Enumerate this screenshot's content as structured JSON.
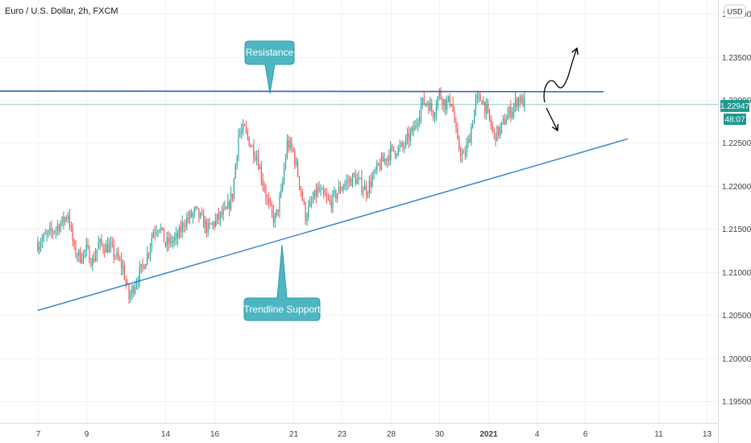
{
  "header": {
    "title": "Euro / U.S. Dollar, 2h, FXCM",
    "currency_button": "USD"
  },
  "price_tag": {
    "price": "1.22947",
    "countdown": "48:07",
    "price_value": 1.22947
  },
  "annotations": {
    "resistance_label": "Resistance",
    "support_label": "Trendline Support"
  },
  "colors": {
    "up": "#26a69a",
    "down": "#ef5350",
    "callout": "#4db6c2",
    "callout_border": "#2f99a6",
    "resistance_line": "#2d62c4",
    "support_line": "#2e7fc8",
    "price_line": "#26a69a",
    "grid": "#f0f2f5",
    "tag": "#1f9a8e",
    "arrow": "#000000"
  },
  "chart_data": {
    "type": "candlestick",
    "title": "Euro / U.S. Dollar, 2h, FXCM",
    "ylim": [
      1.1925,
      1.2416
    ],
    "y_ticks": [
      1.195,
      1.2,
      1.205,
      1.21,
      1.215,
      1.22,
      1.225,
      1.23,
      1.235,
      1.24
    ],
    "y_tick_labels": [
      "1.19500",
      "1.20000",
      "1.20500",
      "1.21000",
      "1.21500",
      "1.22000",
      "1.22500",
      "1.23000",
      "1.23500",
      "1.24000"
    ],
    "grid": true,
    "x_ticks": [
      {
        "label": "7",
        "i": 0
      },
      {
        "label": "9",
        "i": 8
      },
      {
        "label": "14",
        "i": 21
      },
      {
        "label": "16",
        "i": 29
      },
      {
        "label": "21",
        "i": 42
      },
      {
        "label": "23",
        "i": 50
      },
      {
        "label": "28",
        "i": 58
      },
      {
        "label": "30",
        "i": 66
      },
      {
        "label": "2021",
        "i": 74
      },
      {
        "label": "4",
        "i": 82
      },
      {
        "label": "6",
        "i": 90
      },
      {
        "label": "11",
        "i": 102
      },
      {
        "label": "13",
        "i": 110
      }
    ],
    "x_domain": [
      -6.2,
      111.8
    ],
    "ohlc_anchors": [
      [
        0,
        1.2133
      ],
      [
        2,
        1.2145
      ],
      [
        4,
        1.2158
      ],
      [
        5,
        1.2168
      ],
      [
        6,
        1.2125
      ],
      [
        7,
        1.2118
      ],
      [
        8,
        1.2126
      ],
      [
        9,
        1.2112
      ],
      [
        10,
        1.2132
      ],
      [
        12,
        1.2128
      ],
      [
        14,
        1.2105
      ],
      [
        15,
        1.207
      ],
      [
        16,
        1.2088
      ],
      [
        17,
        1.2102
      ],
      [
        18,
        1.212
      ],
      [
        19,
        1.2148
      ],
      [
        20,
        1.2155
      ],
      [
        21,
        1.2132
      ],
      [
        23,
        1.214
      ],
      [
        24,
        1.2158
      ],
      [
        26,
        1.217
      ],
      [
        28,
        1.215
      ],
      [
        30,
        1.2165
      ],
      [
        31,
        1.217
      ],
      [
        32,
        1.219
      ],
      [
        33,
        1.226
      ],
      [
        34,
        1.2265
      ],
      [
        35,
        1.2248
      ],
      [
        36,
        1.2235
      ],
      [
        37,
        1.2205
      ],
      [
        38,
        1.2175
      ],
      [
        39,
        1.216
      ],
      [
        40,
        1.219
      ],
      [
        41,
        1.225
      ],
      [
        42,
        1.224
      ],
      [
        43,
        1.2205
      ],
      [
        44,
        1.2165
      ],
      [
        45,
        1.218
      ],
      [
        46,
        1.2195
      ],
      [
        48,
        1.218
      ],
      [
        50,
        1.22
      ],
      [
        52,
        1.221
      ],
      [
        54,
        1.2195
      ],
      [
        56,
        1.2222
      ],
      [
        58,
        1.224
      ],
      [
        60,
        1.2245
      ],
      [
        62,
        1.2268
      ],
      [
        63,
        1.2295
      ],
      [
        64,
        1.2298
      ],
      [
        65,
        1.2285
      ],
      [
        66,
        1.2308
      ],
      [
        67,
        1.2295
      ],
      [
        68,
        1.23
      ],
      [
        69,
        1.2248
      ],
      [
        70,
        1.2232
      ],
      [
        71,
        1.2258
      ],
      [
        72,
        1.2298
      ],
      [
        73,
        1.2302
      ],
      [
        74,
        1.2282
      ],
      [
        75,
        1.2258
      ],
      [
        76,
        1.2265
      ],
      [
        77,
        1.228
      ],
      [
        78,
        1.229
      ],
      [
        79,
        1.2302
      ],
      [
        80,
        1.2296
      ]
    ],
    "resistance": {
      "start_i": -6.2,
      "start_price": 1.23103,
      "end_i": 93,
      "end_price": 1.23095
    },
    "trendline_support": {
      "start_i": 0,
      "start_price": 1.20555,
      "end_i": 97,
      "end_price": 1.22548
    },
    "current_price": 1.22947
  }
}
